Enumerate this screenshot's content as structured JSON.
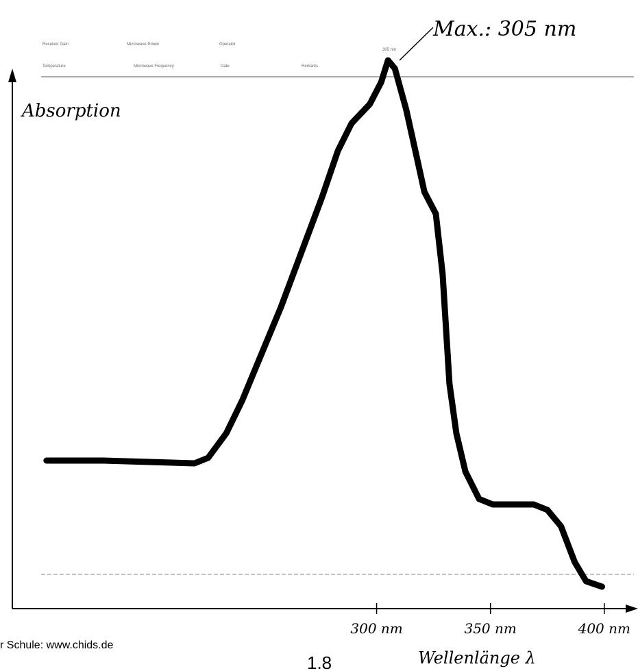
{
  "chart_data": {
    "type": "line",
    "ylabel": "Absorption",
    "xlabel": "Wellenlänge λ",
    "annotation": "Max.: 305 nm",
    "peak_label": "305 nm",
    "form_labels": [
      "Receiver Gain",
      "Microwave Power",
      "Operator",
      "Temperature",
      "Microwave Frequency",
      "Date",
      "Remarks"
    ],
    "footer": "r Schule: www.chids.de",
    "page_number": "1.8",
    "xlim": [
      140,
      413
    ],
    "ylim": [
      0,
      1
    ],
    "xticks": [
      {
        "value": 300,
        "label": "300 nm"
      },
      {
        "value": 350,
        "label": "350 nm"
      },
      {
        "value": 400,
        "label": "400 nm"
      }
    ],
    "x": [
      155,
      180,
      220,
      226,
      234,
      241,
      249,
      258,
      267,
      276,
      283,
      289,
      297,
      302,
      305,
      308,
      313,
      317,
      321,
      326,
      329,
      332,
      335,
      339,
      345,
      351,
      360,
      369,
      375,
      381,
      387,
      392,
      399
    ],
    "series": [
      {
        "name": "Absorption",
        "color": "#000000",
        "values": [
          0.27,
          0.27,
          0.265,
          0.275,
          0.32,
          0.38,
          0.46,
          0.55,
          0.65,
          0.75,
          0.835,
          0.885,
          0.92,
          0.96,
          1.0,
          0.985,
          0.91,
          0.835,
          0.76,
          0.72,
          0.61,
          0.41,
          0.32,
          0.25,
          0.2,
          0.19,
          0.19,
          0.19,
          0.18,
          0.15,
          0.085,
          0.05,
          0.04
        ]
      }
    ]
  }
}
